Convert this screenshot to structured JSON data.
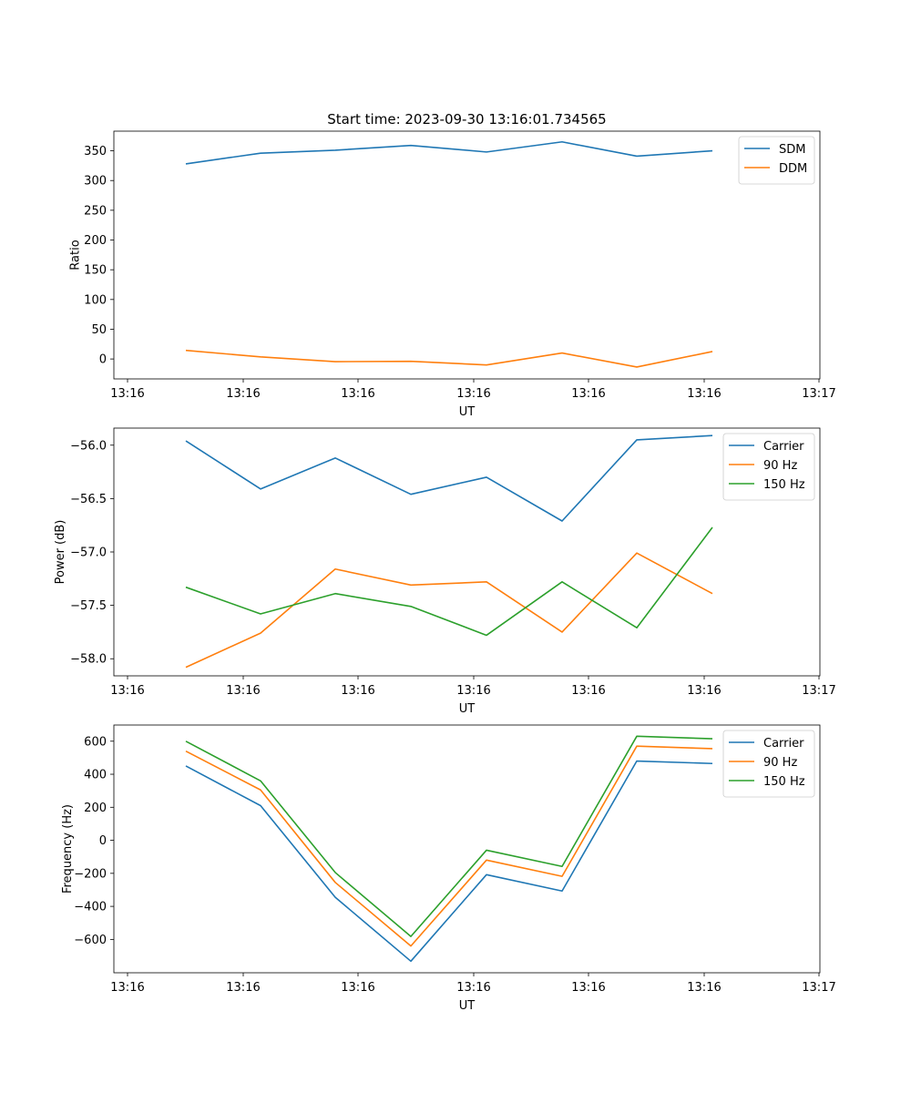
{
  "chart_data": [
    {
      "type": "line",
      "title": "Start time: 2023-09-30 13:16:01.734565",
      "xlabel": "UT",
      "ylabel": "Ratio",
      "x_tick_labels": [
        "13:16",
        "13:16",
        "13:16",
        "13:16",
        "13:16",
        "13:16",
        "13:17"
      ],
      "y_ticks": [
        0,
        50,
        100,
        150,
        200,
        250,
        300,
        350
      ],
      "ylim": [
        -33.5,
        383
      ],
      "x_points": 8,
      "legend_position": "top-right",
      "series": [
        {
          "name": "SDM",
          "color": "#1f77b4",
          "values": [
            328,
            346,
            351,
            359,
            348,
            365,
            341,
            350
          ]
        },
        {
          "name": "DDM",
          "color": "#ff7f0e",
          "values": [
            14.5,
            3.5,
            -4.5,
            -4,
            -10,
            10,
            -13.5,
            12.5
          ]
        }
      ]
    },
    {
      "type": "line",
      "title": "",
      "xlabel": "UT",
      "ylabel": "Power (dB)",
      "x_tick_labels": [
        "13:16",
        "13:16",
        "13:16",
        "13:16",
        "13:16",
        "13:16",
        "13:17"
      ],
      "y_ticks": [
        -58.0,
        -57.5,
        -57.0,
        -56.5,
        -56.0
      ],
      "y_tick_labels": [
        "−58.0",
        "−57.5",
        "−57.0",
        "−56.5",
        "−56.0"
      ],
      "ylim": [
        -58.16,
        -55.84
      ],
      "x_points": 8,
      "legend_position": "top-right",
      "series": [
        {
          "name": "Carrier",
          "color": "#1f77b4",
          "values": [
            -55.96,
            -56.41,
            -56.12,
            -56.46,
            -56.3,
            -56.71,
            -55.95,
            -55.91
          ]
        },
        {
          "name": "90 Hz",
          "color": "#ff7f0e",
          "values": [
            -58.08,
            -57.76,
            -57.16,
            -57.31,
            -57.28,
            -57.75,
            -57.01,
            -57.39
          ]
        },
        {
          "name": "150 Hz",
          "color": "#2ca02c",
          "values": [
            -57.33,
            -57.58,
            -57.39,
            -57.51,
            -57.78,
            -57.28,
            -57.71,
            -56.77
          ]
        }
      ]
    },
    {
      "type": "line",
      "title": "",
      "xlabel": "UT",
      "ylabel": "Frequency (Hz)",
      "x_tick_labels": [
        "13:16",
        "13:16",
        "13:16",
        "13:16",
        "13:16",
        "13:16",
        "13:17"
      ],
      "y_ticks": [
        -600,
        -400,
        -200,
        0,
        200,
        400,
        600
      ],
      "y_tick_labels": [
        "−600",
        "−400",
        "−200",
        "0",
        "200",
        "400",
        "600"
      ],
      "ylim": [
        -802,
        698
      ],
      "x_points": 8,
      "legend_position": "top-right",
      "series": [
        {
          "name": "Carrier",
          "color": "#1f77b4",
          "values": [
            450,
            210,
            -345,
            -732,
            -208,
            -307,
            480,
            465
          ]
        },
        {
          "name": "90 Hz",
          "color": "#ff7f0e",
          "values": [
            540,
            305,
            -255,
            -640,
            -120,
            -218,
            570,
            555
          ]
        },
        {
          "name": "150 Hz",
          "color": "#2ca02c",
          "values": [
            600,
            360,
            -195,
            -582,
            -60,
            -158,
            630,
            615
          ]
        }
      ]
    }
  ]
}
